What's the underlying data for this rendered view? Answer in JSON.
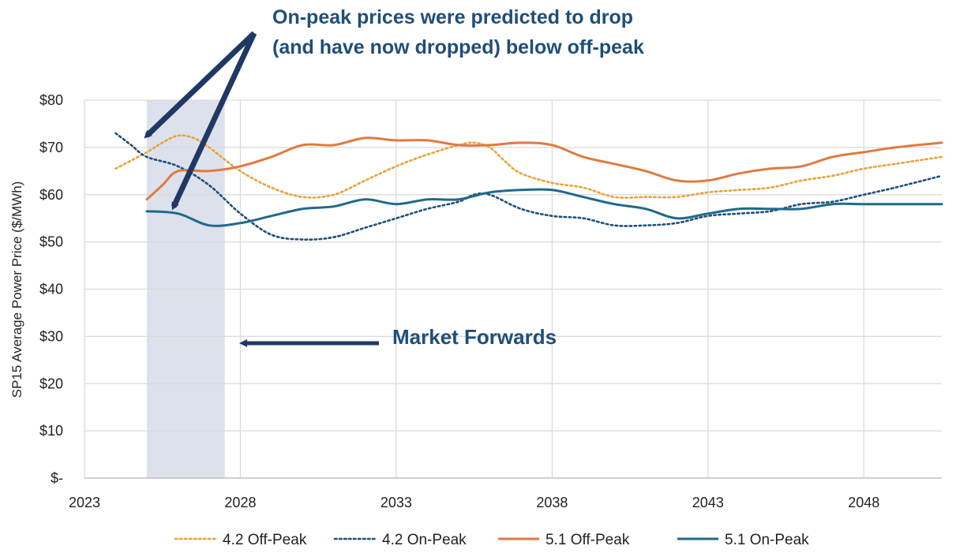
{
  "chart_data": {
    "type": "line",
    "title": "",
    "xlabel": "",
    "ylabel": "SP15 Average Power Price ($/MWh)",
    "xlim": [
      2023,
      2050.5
    ],
    "ylim": [
      0,
      80
    ],
    "x_ticks": [
      {
        "value": 2023,
        "label": "2023"
      },
      {
        "value": 2028,
        "label": "2028"
      },
      {
        "value": 2033,
        "label": "2033"
      },
      {
        "value": 2038,
        "label": "2038"
      },
      {
        "value": 2043,
        "label": "2043"
      },
      {
        "value": 2048,
        "label": "2048"
      }
    ],
    "y_ticks": [
      {
        "value": 0,
        "label": "$-"
      },
      {
        "value": 10,
        "label": "$10"
      },
      {
        "value": 20,
        "label": "$20"
      },
      {
        "value": 30,
        "label": "$30"
      },
      {
        "value": 40,
        "label": "$40"
      },
      {
        "value": 50,
        "label": "$50"
      },
      {
        "value": 60,
        "label": "$60"
      },
      {
        "value": 70,
        "label": "$70"
      },
      {
        "value": 80,
        "label": "$80"
      }
    ],
    "gridlines": {
      "horizontal": true,
      "vertical": true
    },
    "shaded_region": {
      "x_start": 2025,
      "x_end": 2027.5,
      "label": "Market Forwards",
      "color": "#dde1ec"
    },
    "legend_position": "bottom",
    "series": [
      {
        "name": "4.2 Off-Peak",
        "color": "#e8a33a",
        "style": "dotted",
        "points": [
          [
            2024,
            65.5
          ],
          [
            2025,
            69
          ],
          [
            2025.5,
            71
          ],
          [
            2026,
            72.5
          ],
          [
            2026.5,
            72
          ],
          [
            2027,
            70
          ],
          [
            2028,
            65
          ],
          [
            2029,
            61.5
          ],
          [
            2030,
            59.5
          ],
          [
            2031,
            60
          ],
          [
            2032,
            63
          ],
          [
            2033,
            66
          ],
          [
            2034,
            68.5
          ],
          [
            2035,
            70.5
          ],
          [
            2035.5,
            71
          ],
          [
            2036,
            70
          ],
          [
            2036.5,
            67
          ],
          [
            2037,
            64.5
          ],
          [
            2038,
            62.5
          ],
          [
            2039,
            61.5
          ],
          [
            2040,
            59.5
          ],
          [
            2041,
            59.5
          ],
          [
            2042,
            59.5
          ],
          [
            2043,
            60.5
          ],
          [
            2044,
            61
          ],
          [
            2045,
            61.5
          ],
          [
            2046,
            63
          ],
          [
            2047,
            64
          ],
          [
            2048,
            65.5
          ],
          [
            2049,
            66.5
          ],
          [
            2050.5,
            68
          ]
        ]
      },
      {
        "name": "4.2 On-Peak",
        "color": "#1f4e79",
        "style": "dotted",
        "points": [
          [
            2024,
            73
          ],
          [
            2024.5,
            70.5
          ],
          [
            2025,
            68
          ],
          [
            2026,
            66
          ],
          [
            2027,
            62
          ],
          [
            2028,
            56
          ],
          [
            2029,
            51.5
          ],
          [
            2030,
            50.5
          ],
          [
            2031,
            51
          ],
          [
            2032,
            53
          ],
          [
            2033,
            55
          ],
          [
            2034,
            57
          ],
          [
            2035,
            58.5
          ],
          [
            2035.5,
            60
          ],
          [
            2036,
            60
          ],
          [
            2037,
            57
          ],
          [
            2038,
            55.5
          ],
          [
            2039,
            55
          ],
          [
            2040,
            53.5
          ],
          [
            2041,
            53.5
          ],
          [
            2042,
            54
          ],
          [
            2043,
            55.5
          ],
          [
            2044,
            56
          ],
          [
            2045,
            56.5
          ],
          [
            2046,
            58
          ],
          [
            2047,
            58.5
          ],
          [
            2048,
            60
          ],
          [
            2049,
            61.5
          ],
          [
            2050.5,
            64
          ]
        ]
      },
      {
        "name": "5.1 Off-Peak",
        "color": "#e07a3f",
        "style": "solid",
        "points": [
          [
            2025,
            59
          ],
          [
            2025.5,
            62
          ],
          [
            2026,
            65
          ],
          [
            2027,
            65
          ],
          [
            2028,
            66
          ],
          [
            2029,
            68
          ],
          [
            2030,
            70.5
          ],
          [
            2031,
            70.5
          ],
          [
            2032,
            72
          ],
          [
            2033,
            71.5
          ],
          [
            2034,
            71.5
          ],
          [
            2035,
            70.5
          ],
          [
            2036,
            70.5
          ],
          [
            2037,
            71
          ],
          [
            2038,
            70.5
          ],
          [
            2039,
            68
          ],
          [
            2040,
            66.5
          ],
          [
            2041,
            65
          ],
          [
            2042,
            63
          ],
          [
            2043,
            63
          ],
          [
            2044,
            64.5
          ],
          [
            2045,
            65.5
          ],
          [
            2046,
            66
          ],
          [
            2047,
            68
          ],
          [
            2048,
            69
          ],
          [
            2049,
            70
          ],
          [
            2050.5,
            71
          ]
        ]
      },
      {
        "name": "5.1 On-Peak",
        "color": "#1f6a8a",
        "style": "solid",
        "points": [
          [
            2025,
            56.5
          ],
          [
            2026,
            56
          ],
          [
            2027,
            53.5
          ],
          [
            2028,
            54
          ],
          [
            2029,
            55.5
          ],
          [
            2030,
            57
          ],
          [
            2031,
            57.5
          ],
          [
            2032,
            59
          ],
          [
            2033,
            58
          ],
          [
            2034,
            59
          ],
          [
            2035,
            59
          ],
          [
            2036,
            60.5
          ],
          [
            2037,
            61
          ],
          [
            2038,
            61
          ],
          [
            2039,
            59.5
          ],
          [
            2040,
            58
          ],
          [
            2041,
            57
          ],
          [
            2042,
            55
          ],
          [
            2043,
            56
          ],
          [
            2044,
            57
          ],
          [
            2045,
            57
          ],
          [
            2046,
            57
          ],
          [
            2047,
            58
          ],
          [
            2048,
            58
          ],
          [
            2049,
            58
          ],
          [
            2050.5,
            58
          ]
        ]
      }
    ],
    "annotations": [
      {
        "id": "onpeak",
        "lines": [
          "On-peak prices were predicted to drop",
          "(and have now dropped) below off-peak"
        ]
      },
      {
        "id": "forwards",
        "lines": [
          "Market Forwards"
        ]
      }
    ]
  }
}
